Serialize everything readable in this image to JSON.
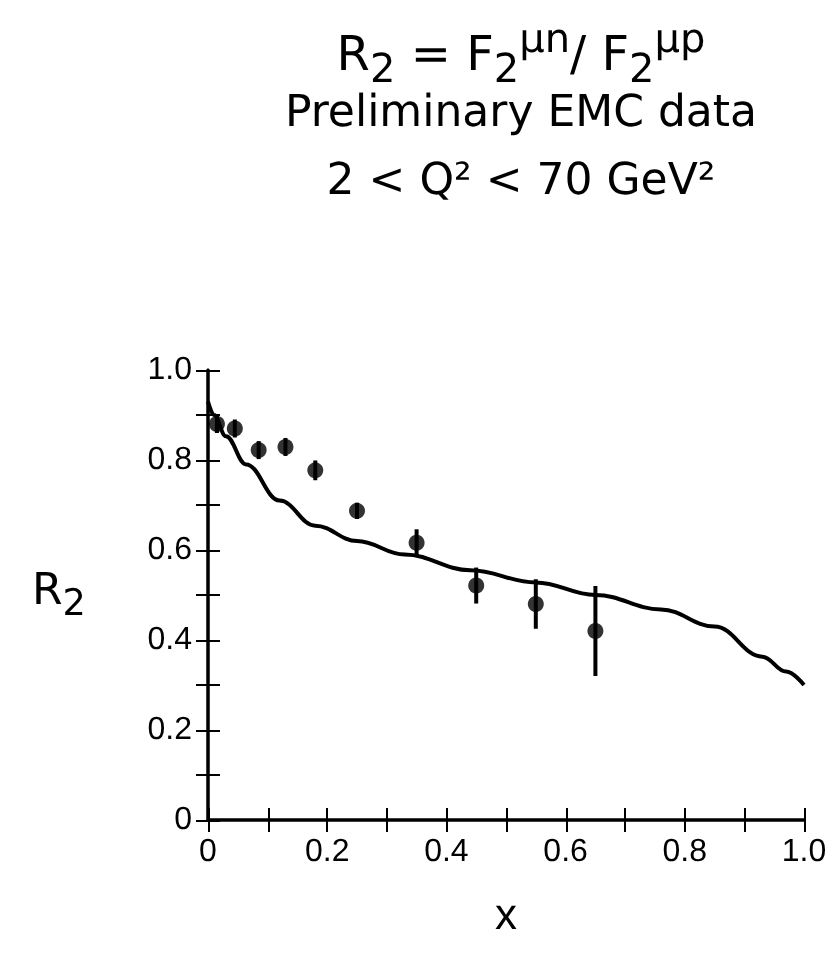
{
  "chart_data": {
    "type": "scatter",
    "title": "R$_{2}$ = F$_{2}$$^{μn}$/ F$_{2}$$^{μp}$",
    "subtitle": "Preliminary EMC data\n2 < Q² < 70 GeV²",
    "xlabel": "x",
    "ylabel": "R$_{2}$",
    "xlim": [
      0,
      1
    ],
    "ylim": [
      0,
      1
    ],
    "xticks": [
      0,
      {
        "value": 0.1,
        "label": null
      },
      0.2,
      {
        "value": 0.3,
        "label": null
      },
      0.4,
      {
        "value": 0.5,
        "label": null
      },
      0.6,
      {
        "value": 0.7,
        "label": null
      },
      0.8,
      {
        "value": 0.9,
        "label": null
      },
      {
        "value": 1,
        "label": "1.0"
      }
    ],
    "yticks": [
      0,
      {
        "value": 0.1,
        "label": null
      },
      0.2,
      {
        "value": 0.3,
        "label": null
      },
      0.4,
      {
        "value": 0.5,
        "label": null
      },
      0.6,
      {
        "value": 0.7,
        "label": null
      },
      0.8,
      {
        "value": 0.9,
        "label": null
      },
      {
        "value": 1,
        "label": "1.0"
      }
    ],
    "grid": false,
    "series": [
      {
        "color": "#000000",
        "marker": "circle",
        "x": [
          0.015,
          0.045,
          0.085,
          0.13,
          0.18,
          0.25,
          0.35,
          0.45,
          0.55,
          0.65
        ],
        "values": [
          0.88,
          0.87,
          0.822,
          0.829,
          0.777,
          0.687,
          0.616,
          0.521,
          0.48,
          0.42
        ],
        "errors": [
          0.02,
          0.02,
          0.02,
          0.02,
          0.022,
          0.018,
          0.03,
          0.04,
          0.055,
          0.1
        ]
      },
      {
        "type": "line",
        "color": "#000000",
        "marker": "none",
        "line_style": "solid",
        "x": [
          0,
          0.01,
          0.03,
          0.064,
          0.12,
          0.18,
          0.25,
          0.33,
          0.44,
          0.55,
          0.65,
          0.76,
          0.85,
          0.93,
          0.97,
          1
        ],
        "values": [
          0.93,
          0.9,
          0.853,
          0.79,
          0.71,
          0.654,
          0.62,
          0.59,
          0.555,
          0.528,
          0.5,
          0.468,
          0.43,
          0.363,
          0.33,
          0.3
        ]
      }
    ]
  }
}
